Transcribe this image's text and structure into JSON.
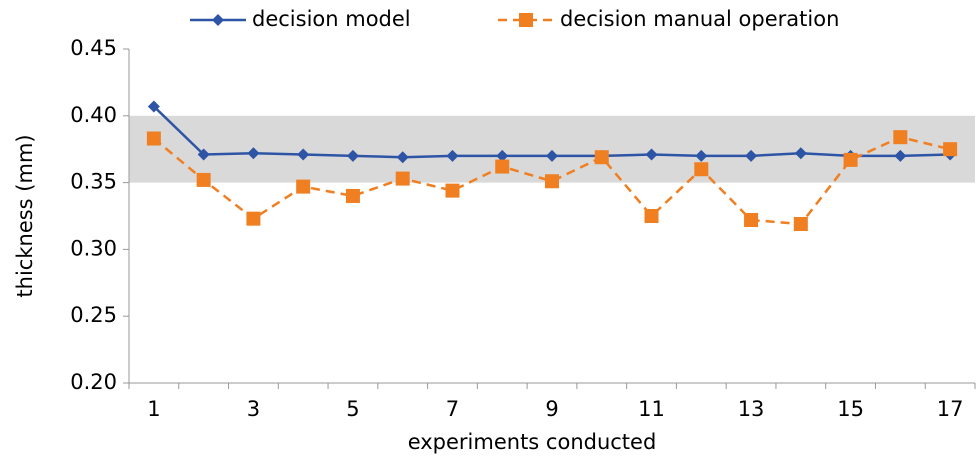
{
  "chart_data": {
    "type": "line",
    "x_label": "experiments conducted",
    "y_label": "thickness (mm)",
    "categories": [
      1,
      null,
      3,
      null,
      5,
      null,
      7,
      null,
      9,
      null,
      11,
      null,
      13,
      null,
      15,
      null,
      17
    ],
    "series": [
      {
        "name": "decision model",
        "color": "#2e55a5",
        "marker": "diamond",
        "dash": false,
        "values": [
          0.407,
          0.371,
          0.372,
          0.371,
          0.37,
          0.369,
          0.37,
          0.37,
          0.37,
          0.37,
          0.371,
          0.37,
          0.37,
          0.372,
          0.37,
          0.37,
          0.371
        ]
      },
      {
        "name": "decision manual operation",
        "color": "#f07f22",
        "marker": "square",
        "dash": true,
        "values": [
          0.383,
          0.352,
          0.323,
          0.347,
          0.34,
          0.353,
          0.344,
          0.362,
          0.351,
          0.369,
          0.325,
          0.36,
          0.322,
          0.319,
          0.367,
          0.384,
          0.375
        ]
      }
    ],
    "ylim": [
      0.2,
      0.45
    ],
    "yticks": [
      {
        "value": 0.2,
        "label": "0.20"
      },
      0.25,
      {
        "value": 0.3,
        "label": "0.30"
      },
      0.35,
      {
        "value": 0.4,
        "label": "0.40"
      },
      0.45
    ],
    "shaded_range": [
      0.35,
      0.4
    ],
    "shade_color": "#d9d9d9",
    "legend": "top"
  }
}
